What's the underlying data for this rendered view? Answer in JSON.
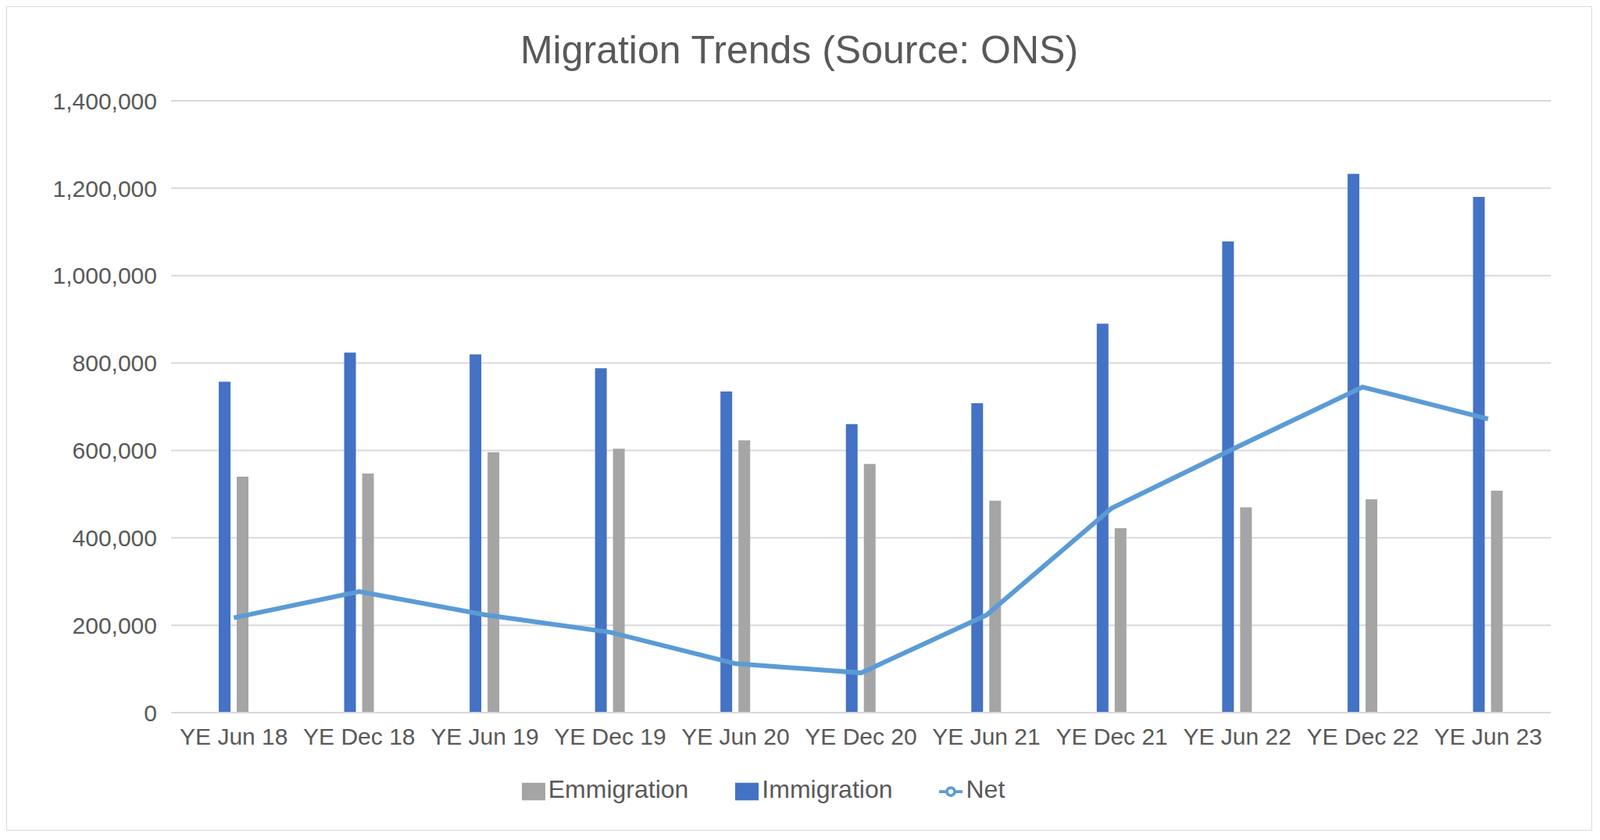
{
  "chart_data": {
    "type": "bar",
    "title": "Migration Trends (Source: ONS)",
    "categories": [
      "YE Jun 18",
      "YE Dec 18",
      "YE Jun 19",
      "YE Dec 19",
      "YE Jun 20",
      "YE Dec 20",
      "YE Jun 21",
      "YE Dec 21",
      "YE Jun 22",
      "YE Dec 22",
      "YE Jun 23"
    ],
    "series": [
      {
        "name": "Immigration",
        "type": "bar",
        "color": "#4472c4",
        "values": [
          757000,
          824000,
          820000,
          788000,
          735000,
          660000,
          708000,
          890000,
          1078000,
          1233000,
          1180000
        ]
      },
      {
        "name": "Emmigration",
        "type": "bar",
        "color": "#a5a5a5",
        "values": [
          540000,
          547000,
          596000,
          604000,
          623000,
          569000,
          485000,
          422000,
          470000,
          488000,
          508000
        ]
      },
      {
        "name": "Net",
        "type": "line",
        "color": "#5b9bd5",
        "marker": "none",
        "values": [
          217000,
          277000,
          224000,
          184000,
          112000,
          91000,
          223000,
          468000,
          608000,
          745000,
          672000
        ]
      }
    ],
    "ylim": [
      0,
      1400000
    ],
    "yticks": [
      0,
      {
        "value": 200000,
        "label": "200,000"
      },
      {
        "value": 400000,
        "label": "400,000"
      },
      {
        "value": 600000,
        "label": "600,000"
      },
      {
        "value": 800000,
        "label": "800,000"
      },
      {
        "value": 1000000,
        "label": "1,000,000"
      },
      {
        "value": 1200000,
        "label": "1,200,000"
      },
      {
        "value": 1400000,
        "label": "1,400,000"
      }
    ],
    "grid": true,
    "legend": "bottom"
  }
}
